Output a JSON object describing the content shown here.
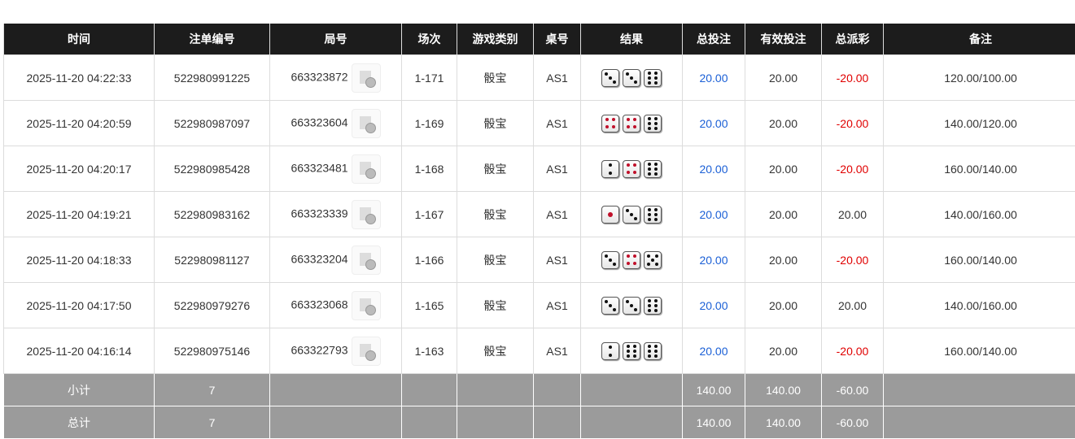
{
  "headers": [
    "时间",
    "注单编号",
    "局号",
    "场次",
    "游戏类别",
    "桌号",
    "结果",
    "总投注",
    "有效投注",
    "总派彩",
    "备注"
  ],
  "rows": [
    {
      "time": "2025-11-20 04:22:33",
      "bet_id": "522980991225",
      "round": "663323872",
      "session": "1-171",
      "game": "骰宝",
      "table": "AS1",
      "dice": [
        3,
        3,
        6
      ],
      "total_bet": "20.00",
      "valid_bet": "20.00",
      "payout": "-20.00",
      "payout_negative": true,
      "note": "120.00/100.00"
    },
    {
      "time": "2025-11-20 04:20:59",
      "bet_id": "522980987097",
      "round": "663323604",
      "session": "1-169",
      "game": "骰宝",
      "table": "AS1",
      "dice": [
        4,
        4,
        6
      ],
      "total_bet": "20.00",
      "valid_bet": "20.00",
      "payout": "-20.00",
      "payout_negative": true,
      "note": "140.00/120.00"
    },
    {
      "time": "2025-11-20 04:20:17",
      "bet_id": "522980985428",
      "round": "663323481",
      "session": "1-168",
      "game": "骰宝",
      "table": "AS1",
      "dice": [
        2,
        4,
        6
      ],
      "total_bet": "20.00",
      "valid_bet": "20.00",
      "payout": "-20.00",
      "payout_negative": true,
      "note": "160.00/140.00"
    },
    {
      "time": "2025-11-20 04:19:21",
      "bet_id": "522980983162",
      "round": "663323339",
      "session": "1-167",
      "game": "骰宝",
      "table": "AS1",
      "dice": [
        1,
        3,
        6
      ],
      "total_bet": "20.00",
      "valid_bet": "20.00",
      "payout": "20.00",
      "payout_negative": false,
      "note": "140.00/160.00"
    },
    {
      "time": "2025-11-20 04:18:33",
      "bet_id": "522980981127",
      "round": "663323204",
      "session": "1-166",
      "game": "骰宝",
      "table": "AS1",
      "dice": [
        3,
        4,
        5
      ],
      "total_bet": "20.00",
      "valid_bet": "20.00",
      "payout": "-20.00",
      "payout_negative": true,
      "note": "160.00/140.00"
    },
    {
      "time": "2025-11-20 04:17:50",
      "bet_id": "522980979276",
      "round": "663323068",
      "session": "1-165",
      "game": "骰宝",
      "table": "AS1",
      "dice": [
        3,
        3,
        6
      ],
      "total_bet": "20.00",
      "valid_bet": "20.00",
      "payout": "20.00",
      "payout_negative": false,
      "note": "140.00/160.00"
    },
    {
      "time": "2025-11-20 04:16:14",
      "bet_id": "522980975146",
      "round": "663322793",
      "session": "1-163",
      "game": "骰宝",
      "table": "AS1",
      "dice": [
        2,
        6,
        6
      ],
      "total_bet": "20.00",
      "valid_bet": "20.00",
      "payout": "-20.00",
      "payout_negative": true,
      "note": "160.00/140.00"
    }
  ],
  "subtotal": {
    "label": "小计",
    "count": "7",
    "total_bet": "140.00",
    "valid_bet": "140.00",
    "payout": "-60.00"
  },
  "grand_total": {
    "label": "总计",
    "count": "7",
    "total_bet": "140.00",
    "valid_bet": "140.00",
    "payout": "-60.00"
  },
  "colors": {
    "header_bg": "#1c1c1c",
    "bet_blue": "#1a5fd6",
    "loss_red": "#e00000",
    "summary_bg": "#9b9b9b"
  }
}
